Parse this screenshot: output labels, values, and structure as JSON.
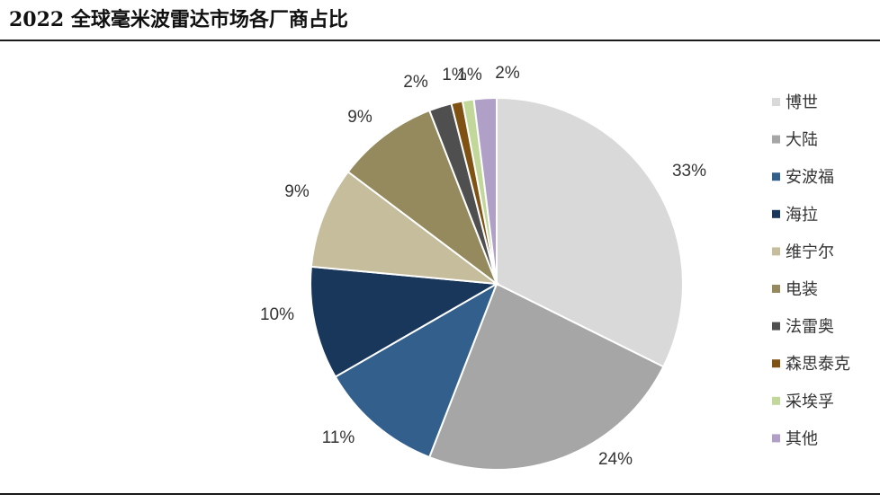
{
  "chart_data": {
    "type": "pie",
    "title": "2022 全球毫米波雷达市场各厂商占比",
    "legend_position": "right",
    "slices": [
      {
        "label": "博世",
        "value": 33,
        "value_label": "33%",
        "color": "#d9d9d9"
      },
      {
        "label": "大陆",
        "value": 24,
        "value_label": "24%",
        "color": "#a6a6a6"
      },
      {
        "label": "安波福",
        "value": 11,
        "value_label": "11%",
        "color": "#335f8c"
      },
      {
        "label": "海拉",
        "value": 10,
        "value_label": "10%",
        "color": "#18375a"
      },
      {
        "label": "维宁尔",
        "value": 9,
        "value_label": "9%",
        "color": "#c6bd9c"
      },
      {
        "label": "电装",
        "value": 9,
        "value_label": "9%",
        "color": "#948a5d"
      },
      {
        "label": "法雷奥",
        "value": 2,
        "value_label": "2%",
        "color": "#4f4f4f"
      },
      {
        "label": "森思泰克",
        "value": 1,
        "value_label": "1%",
        "color": "#7f5214"
      },
      {
        "label": "采埃孚",
        "value": 1,
        "value_label": "1%",
        "color": "#c2d79a"
      },
      {
        "label": "其他",
        "value": 2,
        "value_label": "2%",
        "color": "#b09fc6"
      }
    ]
  }
}
